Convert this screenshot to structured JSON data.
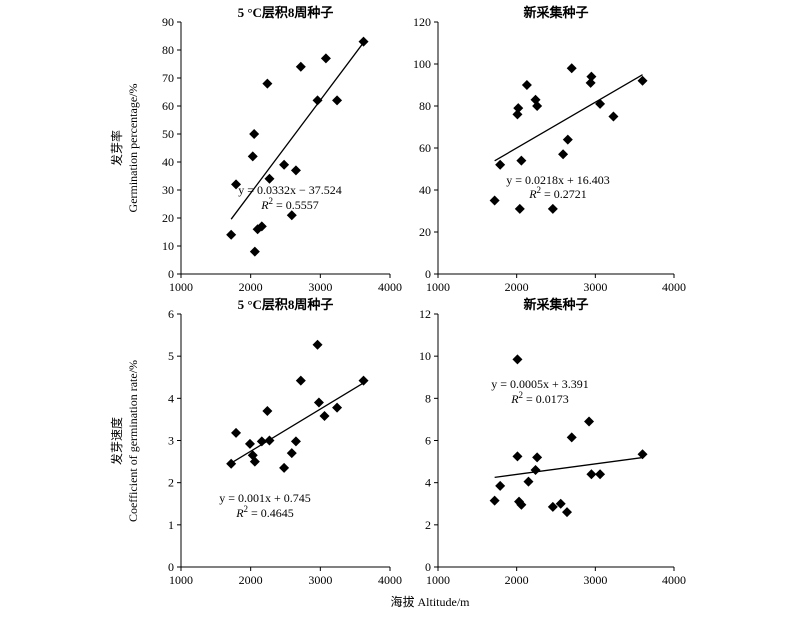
{
  "figure": {
    "xlabel": "海拔 Altitude/m",
    "ylabel_top_cn": "发芽率",
    "ylabel_top_en": "Germination percentage/%",
    "ylabel_bottom_cn": "发芽速度",
    "ylabel_bottom_en": "Coefficient of germination rate/%"
  },
  "chart_data": [
    {
      "type": "scatter",
      "title": "5 °C层积8周种子",
      "xlim": [
        1000,
        4000
      ],
      "ylim": [
        0,
        90
      ],
      "xticks": [
        1000,
        2000,
        3000,
        4000
      ],
      "yticks": [
        0,
        10,
        20,
        30,
        40,
        50,
        60,
        70,
        80,
        90
      ],
      "marker": "diamond",
      "points": [
        {
          "x": 1720,
          "y": 14
        },
        {
          "x": 1790,
          "y": 32
        },
        {
          "x": 2030,
          "y": 42
        },
        {
          "x": 2050,
          "y": 50
        },
        {
          "x": 2060,
          "y": 8
        },
        {
          "x": 2100,
          "y": 16
        },
        {
          "x": 2160,
          "y": 17
        },
        {
          "x": 2240,
          "y": 68
        },
        {
          "x": 2270,
          "y": 34
        },
        {
          "x": 2480,
          "y": 39
        },
        {
          "x": 2590,
          "y": 21
        },
        {
          "x": 2650,
          "y": 37
        },
        {
          "x": 2720,
          "y": 74
        },
        {
          "x": 2960,
          "y": 62
        },
        {
          "x": 3080,
          "y": 77
        },
        {
          "x": 3240,
          "y": 62
        },
        {
          "x": 3620,
          "y": 83
        }
      ],
      "trendline": {
        "slope": 0.0332,
        "intercept": -37.524,
        "x_range": [
          1720,
          3620
        ]
      },
      "equation": "y = 0.0332x − 37.524",
      "r2_label": "R",
      "r2_value": " = 0.5557"
    },
    {
      "type": "scatter",
      "title": "新采集种子",
      "xlim": [
        1000,
        4000
      ],
      "ylim": [
        0,
        120
      ],
      "xticks": [
        1000,
        2000,
        3000,
        4000
      ],
      "yticks": [
        0,
        20,
        40,
        60,
        80,
        100,
        120
      ],
      "marker": "diamond",
      "points": [
        {
          "x": 1720,
          "y": 35
        },
        {
          "x": 1790,
          "y": 52
        },
        {
          "x": 2010,
          "y": 76
        },
        {
          "x": 2020,
          "y": 79
        },
        {
          "x": 2040,
          "y": 31
        },
        {
          "x": 2060,
          "y": 54
        },
        {
          "x": 2130,
          "y": 90
        },
        {
          "x": 2240,
          "y": 83
        },
        {
          "x": 2260,
          "y": 80
        },
        {
          "x": 2460,
          "y": 31
        },
        {
          "x": 2590,
          "y": 57
        },
        {
          "x": 2650,
          "y": 64
        },
        {
          "x": 2700,
          "y": 98
        },
        {
          "x": 2940,
          "y": 91
        },
        {
          "x": 2950,
          "y": 94
        },
        {
          "x": 3060,
          "y": 81
        },
        {
          "x": 3230,
          "y": 75
        },
        {
          "x": 3600,
          "y": 92
        }
      ],
      "trendline": {
        "slope": 0.0218,
        "intercept": 16.403,
        "x_range": [
          1720,
          3600
        ]
      },
      "equation": "y = 0.0218x + 16.403",
      "r2_label": "R",
      "r2_value": " = 0.2721"
    },
    {
      "type": "scatter",
      "title": "5 °C层积8周种子",
      "xlim": [
        1000,
        4000
      ],
      "ylim": [
        0,
        6
      ],
      "xticks": [
        1000,
        2000,
        3000,
        4000
      ],
      "yticks": [
        0,
        1,
        2,
        3,
        4,
        5,
        6
      ],
      "marker": "diamond",
      "points": [
        {
          "x": 1720,
          "y": 2.45
        },
        {
          "x": 1790,
          "y": 3.18
        },
        {
          "x": 1990,
          "y": 2.92
        },
        {
          "x": 2030,
          "y": 2.65
        },
        {
          "x": 2060,
          "y": 2.5
        },
        {
          "x": 2160,
          "y": 2.98
        },
        {
          "x": 2240,
          "y": 3.7
        },
        {
          "x": 2270,
          "y": 3.0
        },
        {
          "x": 2480,
          "y": 2.35
        },
        {
          "x": 2590,
          "y": 2.7
        },
        {
          "x": 2650,
          "y": 2.98
        },
        {
          "x": 2720,
          "y": 4.42
        },
        {
          "x": 2960,
          "y": 5.27
        },
        {
          "x": 2980,
          "y": 3.9
        },
        {
          "x": 3060,
          "y": 3.58
        },
        {
          "x": 3240,
          "y": 3.78
        },
        {
          "x": 3620,
          "y": 4.42
        }
      ],
      "trendline": {
        "slope": 0.001,
        "intercept": 0.745,
        "x_range": [
          1720,
          3620
        ]
      },
      "equation": "y = 0.001x + 0.745",
      "r2_label": "R",
      "r2_value": " = 0.4645"
    },
    {
      "type": "scatter",
      "title": "新采集种子",
      "xlim": [
        1000,
        4000
      ],
      "ylim": [
        0,
        12
      ],
      "xticks": [
        1000,
        2000,
        3000,
        4000
      ],
      "yticks": [
        0,
        2,
        4,
        6,
        8,
        10,
        12
      ],
      "marker": "diamond",
      "points": [
        {
          "x": 1720,
          "y": 3.15
        },
        {
          "x": 1790,
          "y": 3.85
        },
        {
          "x": 2010,
          "y": 9.85
        },
        {
          "x": 2010,
          "y": 5.25
        },
        {
          "x": 2030,
          "y": 3.1
        },
        {
          "x": 2060,
          "y": 2.95
        },
        {
          "x": 2150,
          "y": 4.05
        },
        {
          "x": 2240,
          "y": 4.6
        },
        {
          "x": 2260,
          "y": 5.2
        },
        {
          "x": 2460,
          "y": 2.85
        },
        {
          "x": 2560,
          "y": 3.0
        },
        {
          "x": 2640,
          "y": 2.6
        },
        {
          "x": 2700,
          "y": 6.15
        },
        {
          "x": 2920,
          "y": 6.9
        },
        {
          "x": 2950,
          "y": 4.4
        },
        {
          "x": 3060,
          "y": 4.4
        },
        {
          "x": 3600,
          "y": 5.35
        }
      ],
      "trendline": {
        "slope": 0.0005,
        "intercept": 3.391,
        "x_range": [
          1720,
          3600
        ]
      },
      "equation": "y = 0.0005x + 3.391",
      "r2_label": "R",
      "r2_value": " = 0.0173"
    }
  ]
}
